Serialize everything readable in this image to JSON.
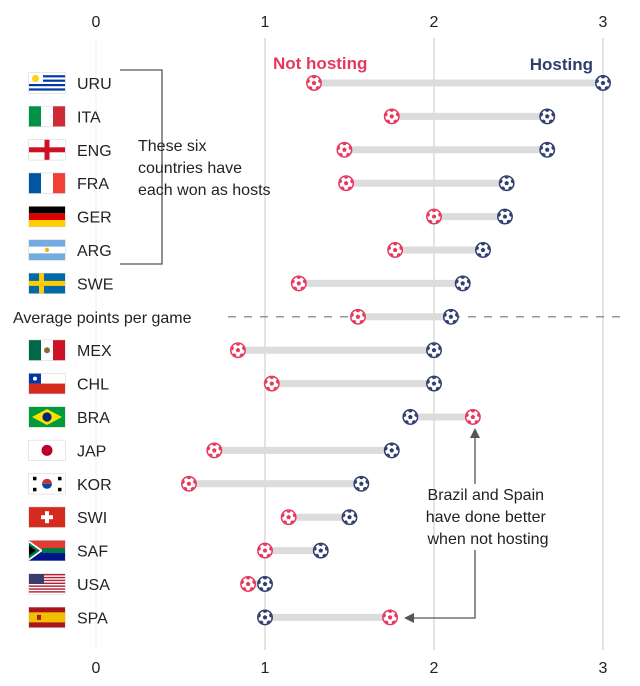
{
  "chart_data": {
    "type": "dumbbell",
    "x_ticks": [
      0,
      1,
      2,
      3
    ],
    "xlim": [
      0,
      3
    ],
    "metric": "points per game",
    "legend": {
      "not_hosting": "Not hosting",
      "hosting": "Hosting"
    },
    "colors": {
      "not_hosting": "#e6385d",
      "hosting": "#2f3e6e",
      "connector": "#dcdcdc",
      "grid": "#d4d4d4"
    },
    "rows": [
      {
        "code": "URU",
        "flag": "uruguay",
        "not_hosting": 1.29,
        "hosting": 3.0
      },
      {
        "code": "ITA",
        "flag": "italy",
        "not_hosting": 1.75,
        "hosting": 2.67
      },
      {
        "code": "ENG",
        "flag": "england",
        "not_hosting": 1.47,
        "hosting": 2.67
      },
      {
        "code": "FRA",
        "flag": "france",
        "not_hosting": 1.48,
        "hosting": 2.43
      },
      {
        "code": "GER",
        "flag": "germany",
        "not_hosting": 2.0,
        "hosting": 2.42
      },
      {
        "code": "ARG",
        "flag": "argentina",
        "not_hosting": 1.77,
        "hosting": 2.29
      },
      {
        "code": "SWE",
        "flag": "sweden",
        "not_hosting": 1.2,
        "hosting": 2.17
      },
      {
        "code": "Average points per game",
        "flag": null,
        "not_hosting": 1.55,
        "hosting": 2.1,
        "is_average": true
      },
      {
        "code": "MEX",
        "flag": "mexico",
        "not_hosting": 0.84,
        "hosting": 2.0
      },
      {
        "code": "CHL",
        "flag": "chile",
        "not_hosting": 1.04,
        "hosting": 2.0
      },
      {
        "code": "BRA",
        "flag": "brazil",
        "not_hosting": 2.23,
        "hosting": 1.86
      },
      {
        "code": "JAP",
        "flag": "japan",
        "not_hosting": 0.7,
        "hosting": 1.75
      },
      {
        "code": "KOR",
        "flag": "korea",
        "not_hosting": 0.55,
        "hosting": 1.57
      },
      {
        "code": "SWI",
        "flag": "switzerland",
        "not_hosting": 1.14,
        "hosting": 1.5
      },
      {
        "code": "SAF",
        "flag": "southafrica",
        "not_hosting": 1.0,
        "hosting": 1.33
      },
      {
        "code": "USA",
        "flag": "usa",
        "not_hosting": 0.9,
        "hosting": 1.0
      },
      {
        "code": "SPA",
        "flag": "spain",
        "not_hosting": 1.74,
        "hosting": 1.0
      }
    ],
    "annotations": {
      "hosts_won": [
        "These six",
        "countries have",
        "each won as hosts"
      ],
      "brazil_spain": [
        "Brazil and Spain",
        "have done better",
        "when not hosting"
      ]
    }
  }
}
